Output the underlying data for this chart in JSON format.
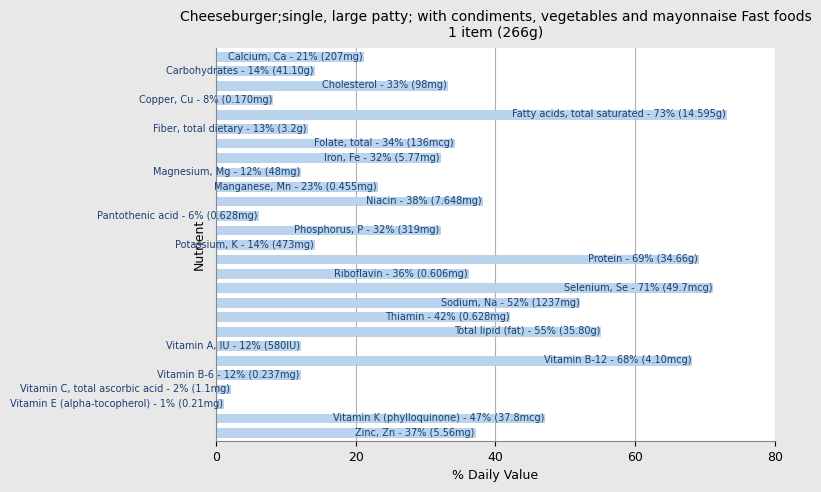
{
  "title": "Cheeseburger;single, large patty; with condiments, vegetables and mayonnaise Fast foods\n1 item (266g)",
  "xlabel": "% Daily Value",
  "ylabel": "Nutrient",
  "xlim": [
    0,
    80
  ],
  "bar_color": "#bad4ed",
  "bar_edge_color": "#a0bedd",
  "nutrients": [
    {
      "label": "Calcium, Ca - 21% (207mg)",
      "value": 21
    },
    {
      "label": "Carbohydrates - 14% (41.10g)",
      "value": 14
    },
    {
      "label": "Cholesterol - 33% (98mg)",
      "value": 33
    },
    {
      "label": "Copper, Cu - 8% (0.170mg)",
      "value": 8
    },
    {
      "label": "Fatty acids, total saturated - 73% (14.595g)",
      "value": 73
    },
    {
      "label": "Fiber, total dietary - 13% (3.2g)",
      "value": 13
    },
    {
      "label": "Folate, total - 34% (136mcg)",
      "value": 34
    },
    {
      "label": "Iron, Fe - 32% (5.77mg)",
      "value": 32
    },
    {
      "label": "Magnesium, Mg - 12% (48mg)",
      "value": 12
    },
    {
      "label": "Manganese, Mn - 23% (0.455mg)",
      "value": 23
    },
    {
      "label": "Niacin - 38% (7.648mg)",
      "value": 38
    },
    {
      "label": "Pantothenic acid - 6% (0.628mg)",
      "value": 6
    },
    {
      "label": "Phosphorus, P - 32% (319mg)",
      "value": 32
    },
    {
      "label": "Potassium, K - 14% (473mg)",
      "value": 14
    },
    {
      "label": "Protein - 69% (34.66g)",
      "value": 69
    },
    {
      "label": "Riboflavin - 36% (0.606mg)",
      "value": 36
    },
    {
      "label": "Selenium, Se - 71% (49.7mcg)",
      "value": 71
    },
    {
      "label": "Sodium, Na - 52% (1237mg)",
      "value": 52
    },
    {
      "label": "Thiamin - 42% (0.628mg)",
      "value": 42
    },
    {
      "label": "Total lipid (fat) - 55% (35.80g)",
      "value": 55
    },
    {
      "label": "Vitamin A, IU - 12% (580IU)",
      "value": 12
    },
    {
      "label": "Vitamin B-12 - 68% (4.10mcg)",
      "value": 68
    },
    {
      "label": "Vitamin B-6 - 12% (0.237mg)",
      "value": 12
    },
    {
      "label": "Vitamin C, total ascorbic acid - 2% (1.1mg)",
      "value": 2
    },
    {
      "label": "Vitamin E (alpha-tocopherol) - 1% (0.21mg)",
      "value": 1
    },
    {
      "label": "Vitamin K (phylloquinone) - 47% (37.8mcg)",
      "value": 47
    },
    {
      "label": "Zinc, Zn - 37% (5.56mg)",
      "value": 37
    }
  ],
  "bg_color": "#e8e8e8",
  "plot_bg_color": "#ffffff",
  "text_color": "#1a3f6f",
  "grid_color": "#b0b0b0",
  "title_fontsize": 10,
  "label_fontsize": 7,
  "axis_label_fontsize": 9,
  "xticks": [
    0,
    20,
    40,
    60,
    80
  ]
}
